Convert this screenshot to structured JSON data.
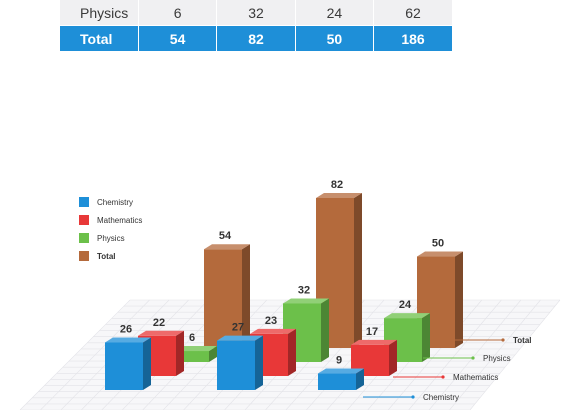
{
  "table": {
    "rows": [
      {
        "label": "Physics",
        "values": [
          "6",
          "32",
          "24",
          "62"
        ]
      },
      {
        "label": "Total",
        "values": [
          "54",
          "82",
          "50",
          "186"
        ]
      }
    ]
  },
  "chart_data": {
    "type": "bar",
    "categories": [
      "",
      "",
      ""
    ],
    "series": [
      {
        "name": "Chemistry",
        "color": "#1e8fd8",
        "values": [
          26,
          27,
          9
        ]
      },
      {
        "name": "Mathematics",
        "color": "#e83838",
        "values": [
          22,
          23,
          17
        ]
      },
      {
        "name": "Physics",
        "color": "#6cc04a",
        "values": [
          6,
          32,
          24
        ]
      },
      {
        "name": "Total",
        "color": "#b46a3c",
        "values": [
          54,
          82,
          50
        ]
      }
    ],
    "depth_labels": [
      "Total",
      "Physics",
      "Mathematics",
      "Chemistry"
    ],
    "legend_position": "left"
  }
}
